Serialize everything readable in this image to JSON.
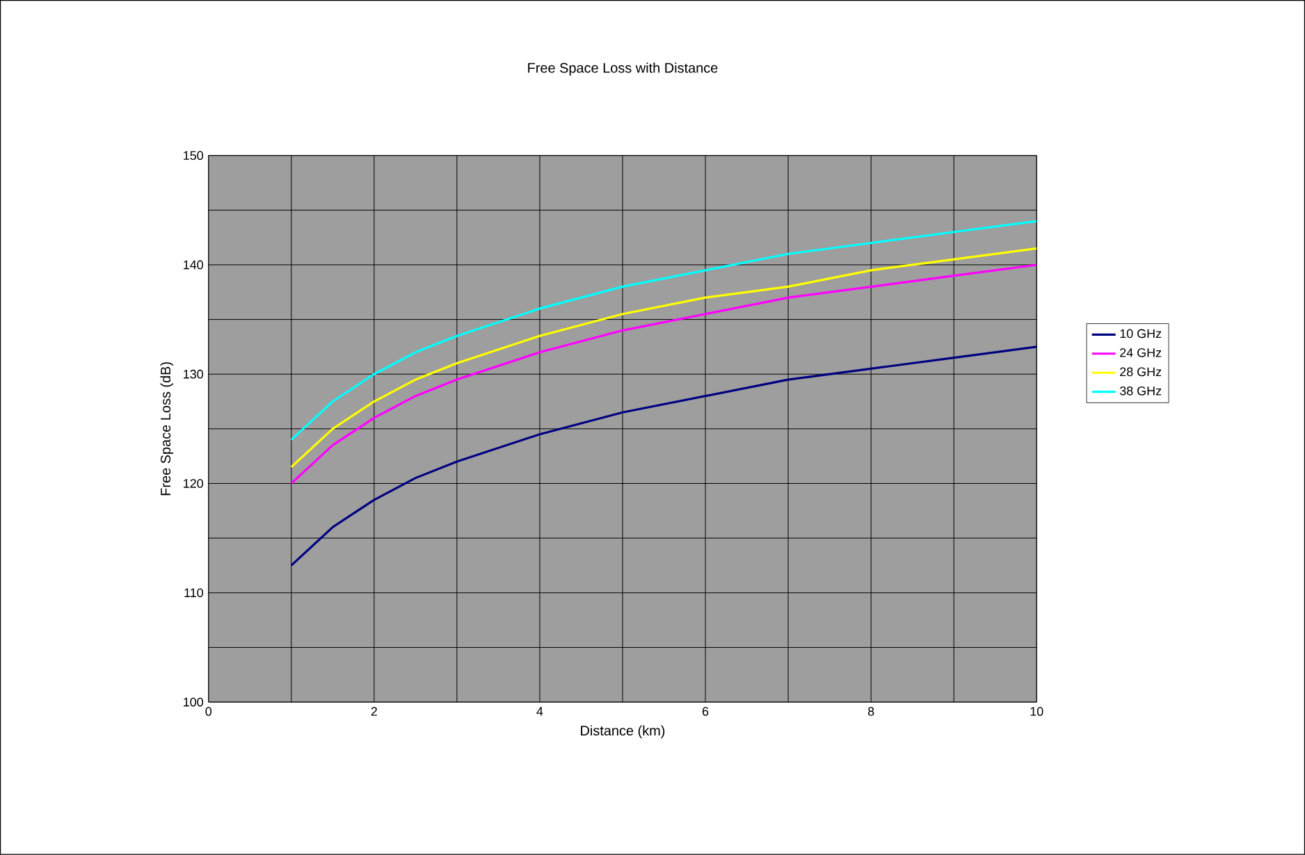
{
  "chart_data": {
    "type": "line",
    "title": "Free Space Loss with Distance",
    "xlabel": "Distance (km)",
    "ylabel": "Free Space Loss (dB)",
    "x": [
      1,
      1.5,
      2,
      2.5,
      3,
      4,
      5,
      6,
      7,
      8,
      9,
      10
    ],
    "series": [
      {
        "name": "10 GHz",
        "color": "#000080",
        "values": [
          112.5,
          116,
          118.5,
          120.5,
          122,
          124.5,
          126.5,
          128,
          129.5,
          130.5,
          131.5,
          132.5
        ]
      },
      {
        "name": "24 GHz",
        "color": "#ff00ff",
        "values": [
          120,
          123.5,
          126,
          128,
          129.5,
          132,
          134,
          135.5,
          137,
          138,
          139,
          140
        ]
      },
      {
        "name": "28 GHz",
        "color": "#ffff00",
        "values": [
          121.5,
          125,
          127.5,
          129.5,
          131,
          133.5,
          135.5,
          137,
          138,
          139.5,
          140.5,
          141.5
        ]
      },
      {
        "name": "38 GHz",
        "color": "#00ffff",
        "values": [
          124,
          127.5,
          130,
          132,
          133.5,
          136,
          138,
          139.5,
          141,
          142,
          143,
          144
        ]
      }
    ],
    "xlim": [
      0,
      10
    ],
    "ylim": [
      100,
      150
    ],
    "xticks": [
      0,
      2,
      4,
      6,
      8,
      10
    ],
    "yticks": [
      100,
      110,
      120,
      130,
      140,
      150
    ],
    "grid": true,
    "legend": "right",
    "marker": "none",
    "line_style": "solid"
  }
}
